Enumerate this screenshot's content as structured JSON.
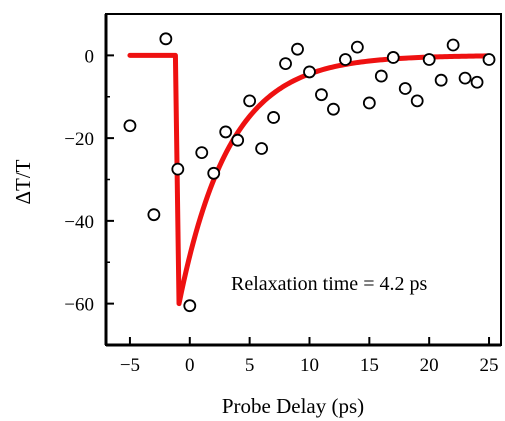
{
  "chart_data": {
    "type": "scatter",
    "title": "",
    "xlabel": "Probe Delay (ps)",
    "ylabel": "ΔT/T",
    "xlim": [
      -7,
      26
    ],
    "ylim": [
      -70,
      10
    ],
    "xticks": [
      -5,
      0,
      5,
      10,
      15,
      20,
      25
    ],
    "xtick_labels": [
      "−5",
      "0",
      "5",
      "10",
      "15",
      "20",
      "25"
    ],
    "yticks": [
      0,
      -20,
      -40,
      -60
    ],
    "ytick_labels": [
      "0",
      "−20",
      "−40",
      "−60"
    ],
    "grid": false,
    "annotation": "Relaxation time = 4.2 ps",
    "series": [
      {
        "kind": "points",
        "color": "#000000",
        "x": [
          -5,
          -3,
          -2,
          -1,
          0,
          1,
          2,
          3,
          4,
          5,
          6,
          7,
          8,
          9,
          10,
          11,
          12,
          13,
          14,
          15,
          16,
          17,
          18,
          19,
          20,
          21,
          22,
          23,
          24,
          25
        ],
        "y": [
          -17,
          -38.5,
          4,
          -27.5,
          -60.5,
          -23.5,
          -28.5,
          -18.5,
          -20.5,
          -11,
          -22.5,
          -15,
          -2,
          1.5,
          -4,
          -9.5,
          -13,
          -1,
          2,
          -11.5,
          -5,
          -0.5,
          -8,
          -11,
          -1,
          -6,
          2.5,
          -5.5,
          -6.5,
          -1
        ]
      },
      {
        "kind": "fit",
        "color": "#ee1111",
        "baseline_x": [
          -5,
          -1.2
        ],
        "baseline_y": 0,
        "drop_x": -0.9,
        "min_y": -60,
        "min_x": -0.9,
        "tau": 4.2,
        "x_end": 25
      }
    ]
  }
}
